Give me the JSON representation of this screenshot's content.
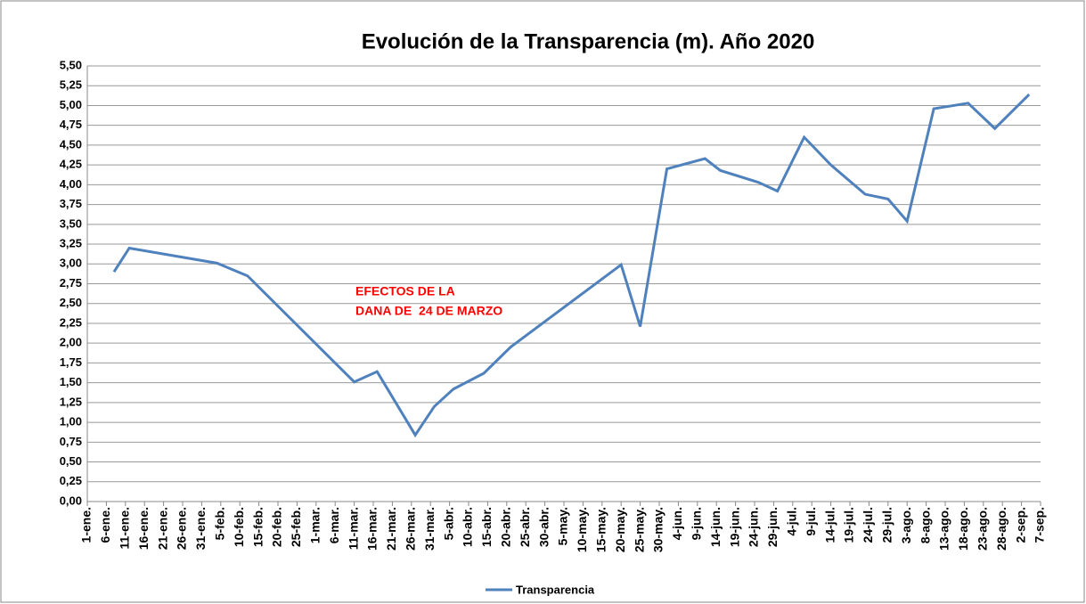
{
  "chart_data": {
    "type": "line",
    "title": "Evolución de la Transparencia (m). Año 2020",
    "annotation": [
      "EFECTOS DE LA",
      "DANA DE  24 DE MARZO"
    ],
    "x": [
      8,
      12,
      35,
      43,
      71,
      77,
      87,
      92,
      97,
      105,
      112,
      141,
      146,
      153,
      163,
      167,
      177,
      182,
      189,
      196,
      205,
      211,
      216,
      223,
      232,
      239,
      248
    ],
    "series": [
      {
        "name": "Transparencia",
        "color": "#4f81bd",
        "values": [
          2.9,
          3.2,
          3.01,
          2.85,
          1.51,
          1.64,
          0.84,
          1.2,
          1.42,
          1.62,
          1.95,
          2.99,
          2.21,
          4.2,
          4.33,
          4.18,
          4.03,
          3.92,
          4.6,
          4.25,
          3.88,
          3.82,
          3.54,
          4.96,
          5.03,
          4.71,
          5.14
        ]
      }
    ],
    "xlim": [
      1,
      251
    ],
    "xticks": [
      {
        "value": 1,
        "label": "1-ene."
      },
      {
        "value": 6,
        "label": "6-ene."
      },
      {
        "value": 11,
        "label": "11-ene."
      },
      {
        "value": 16,
        "label": "16-ene."
      },
      {
        "value": 21,
        "label": "21-ene."
      },
      {
        "value": 26,
        "label": "26-ene."
      },
      {
        "value": 31,
        "label": "31-ene."
      },
      {
        "value": 36,
        "label": "5-feb."
      },
      {
        "value": 41,
        "label": "10-feb."
      },
      {
        "value": 46,
        "label": "15-feb."
      },
      {
        "value": 51,
        "label": "20-feb."
      },
      {
        "value": 56,
        "label": "25-feb."
      },
      {
        "value": 61,
        "label": "1-mar."
      },
      {
        "value": 66,
        "label": "6-mar."
      },
      {
        "value": 71,
        "label": "11-mar."
      },
      {
        "value": 76,
        "label": "16-mar."
      },
      {
        "value": 81,
        "label": "21-mar."
      },
      {
        "value": 86,
        "label": "26-mar."
      },
      {
        "value": 91,
        "label": "31-mar."
      },
      {
        "value": 96,
        "label": "5-abr."
      },
      {
        "value": 101,
        "label": "10-abr."
      },
      {
        "value": 106,
        "label": "15-abr."
      },
      {
        "value": 111,
        "label": "20-abr."
      },
      {
        "value": 116,
        "label": "25-abr."
      },
      {
        "value": 121,
        "label": "30-abr."
      },
      {
        "value": 126,
        "label": "5-may."
      },
      {
        "value": 131,
        "label": "10-may."
      },
      {
        "value": 136,
        "label": "15-may."
      },
      {
        "value": 141,
        "label": "20-may."
      },
      {
        "value": 146,
        "label": "25-may."
      },
      {
        "value": 151,
        "label": "30-may."
      },
      {
        "value": 156,
        "label": "4-jun."
      },
      {
        "value": 161,
        "label": "9-jun."
      },
      {
        "value": 166,
        "label": "14-jun."
      },
      {
        "value": 171,
        "label": "19-jun."
      },
      {
        "value": 176,
        "label": "24-jun."
      },
      {
        "value": 181,
        "label": "29-jun."
      },
      {
        "value": 186,
        "label": "4-jul."
      },
      {
        "value": 191,
        "label": "9-jul."
      },
      {
        "value": 196,
        "label": "14-jul."
      },
      {
        "value": 201,
        "label": "19-jul."
      },
      {
        "value": 206,
        "label": "24-jul."
      },
      {
        "value": 211,
        "label": "29-jul."
      },
      {
        "value": 216,
        "label": "3-ago."
      },
      {
        "value": 221,
        "label": "8-ago."
      },
      {
        "value": 226,
        "label": "13-ago."
      },
      {
        "value": 231,
        "label": "18-ago."
      },
      {
        "value": 236,
        "label": "23-ago."
      },
      {
        "value": 241,
        "label": "28-ago."
      },
      {
        "value": 246,
        "label": "2-sep."
      },
      {
        "value": 251,
        "label": "7-sep."
      }
    ],
    "ylim": [
      0,
      5.5
    ],
    "yticks": [
      {
        "value": 0,
        "label": "0,00"
      },
      {
        "value": 0.25,
        "label": "0,25"
      },
      {
        "value": 0.5,
        "label": "0,50"
      },
      {
        "value": 0.75,
        "label": "0,75"
      },
      {
        "value": 1,
        "label": "1,00"
      },
      {
        "value": 1.25,
        "label": "1,25"
      },
      {
        "value": 1.5,
        "label": "1,50"
      },
      {
        "value": 1.75,
        "label": "1,75"
      },
      {
        "value": 2,
        "label": "2,00"
      },
      {
        "value": 2.25,
        "label": "2,25"
      },
      {
        "value": 2.5,
        "label": "2,50"
      },
      {
        "value": 2.75,
        "label": "2,75"
      },
      {
        "value": 3,
        "label": "3,00"
      },
      {
        "value": 3.25,
        "label": "3,25"
      },
      {
        "value": 3.5,
        "label": "3,50"
      },
      {
        "value": 3.75,
        "label": "3,75"
      },
      {
        "value": 4,
        "label": "4,00"
      },
      {
        "value": 4.25,
        "label": "4,25"
      },
      {
        "value": 4.5,
        "label": "4,50"
      },
      {
        "value": 4.75,
        "label": "4,75"
      },
      {
        "value": 5,
        "label": "5,00"
      },
      {
        "value": 5.25,
        "label": "5,25"
      },
      {
        "value": 5.5,
        "label": "5,50"
      }
    ],
    "grid": true
  }
}
